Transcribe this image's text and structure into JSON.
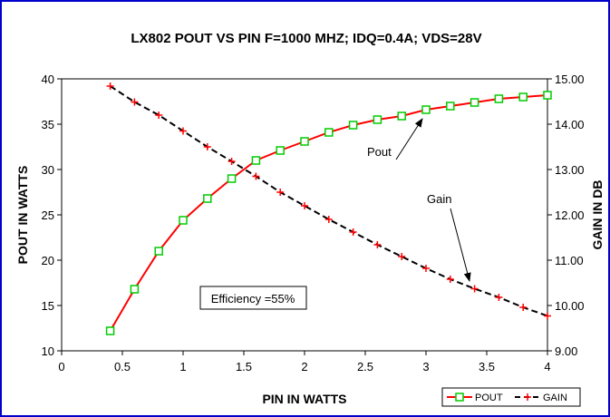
{
  "chart_data": {
    "type": "line",
    "title": "LX802  POUT VS PIN F=1000 MHZ; IDQ=0.4A; VDS=28V",
    "xlabel": "PIN IN WATTS",
    "ylabel": "POUT IN WATTS",
    "y2label": "GAIN IN DB",
    "xlim": [
      0,
      4
    ],
    "ylim": [
      10,
      40
    ],
    "y2lim": [
      9,
      15
    ],
    "x_ticks": [
      "0",
      "0.5",
      "1",
      "1.5",
      "2",
      "2.5",
      "3",
      "3.5",
      "4"
    ],
    "y_ticks": [
      "10",
      "15",
      "20",
      "25",
      "30",
      "35",
      "40"
    ],
    "y2_ticks": [
      "9.00",
      "10.00",
      "11.00",
      "12.00",
      "13.00",
      "14.00",
      "15.00"
    ],
    "grid": false,
    "legend_position": "bottom-right",
    "series": [
      {
        "name": "POUT",
        "axis": "left",
        "color": "#ff0000",
        "marker": "square",
        "marker_color": "#00cc00",
        "x": [
          0.4,
          0.6,
          0.8,
          1.0,
          1.2,
          1.4,
          1.6,
          1.8,
          2.0,
          2.2,
          2.4,
          2.6,
          2.8,
          3.0,
          3.2,
          3.4,
          3.6,
          3.8,
          4.0
        ],
        "values": [
          12.2,
          16.8,
          21.0,
          24.4,
          26.8,
          29.0,
          31.0,
          32.1,
          33.1,
          34.1,
          34.9,
          35.5,
          35.9,
          36.6,
          37.0,
          37.4,
          37.8,
          38.0,
          38.2
        ]
      },
      {
        "name": "GAIN",
        "axis": "right",
        "color": "#000000",
        "line_style": "dashed",
        "marker": "plus",
        "marker_color": "#ff0000",
        "x": [
          0.4,
          0.6,
          0.8,
          1.0,
          1.2,
          1.4,
          1.6,
          1.8,
          2.0,
          2.2,
          2.4,
          2.6,
          2.8,
          3.0,
          3.2,
          3.4,
          3.6,
          3.8,
          4.0
        ],
        "values": [
          14.84,
          14.49,
          14.2,
          13.85,
          13.5,
          13.18,
          12.85,
          12.5,
          12.2,
          11.9,
          11.62,
          11.34,
          11.08,
          10.82,
          10.58,
          10.37,
          10.18,
          9.96,
          9.77
        ]
      }
    ],
    "annotations": [
      {
        "text": "Efficiency =55%",
        "boxed": true
      },
      {
        "text": "Pout",
        "arrow_to_series": "POUT"
      },
      {
        "text": "Gain",
        "arrow_to_series": "GAIN"
      }
    ]
  }
}
